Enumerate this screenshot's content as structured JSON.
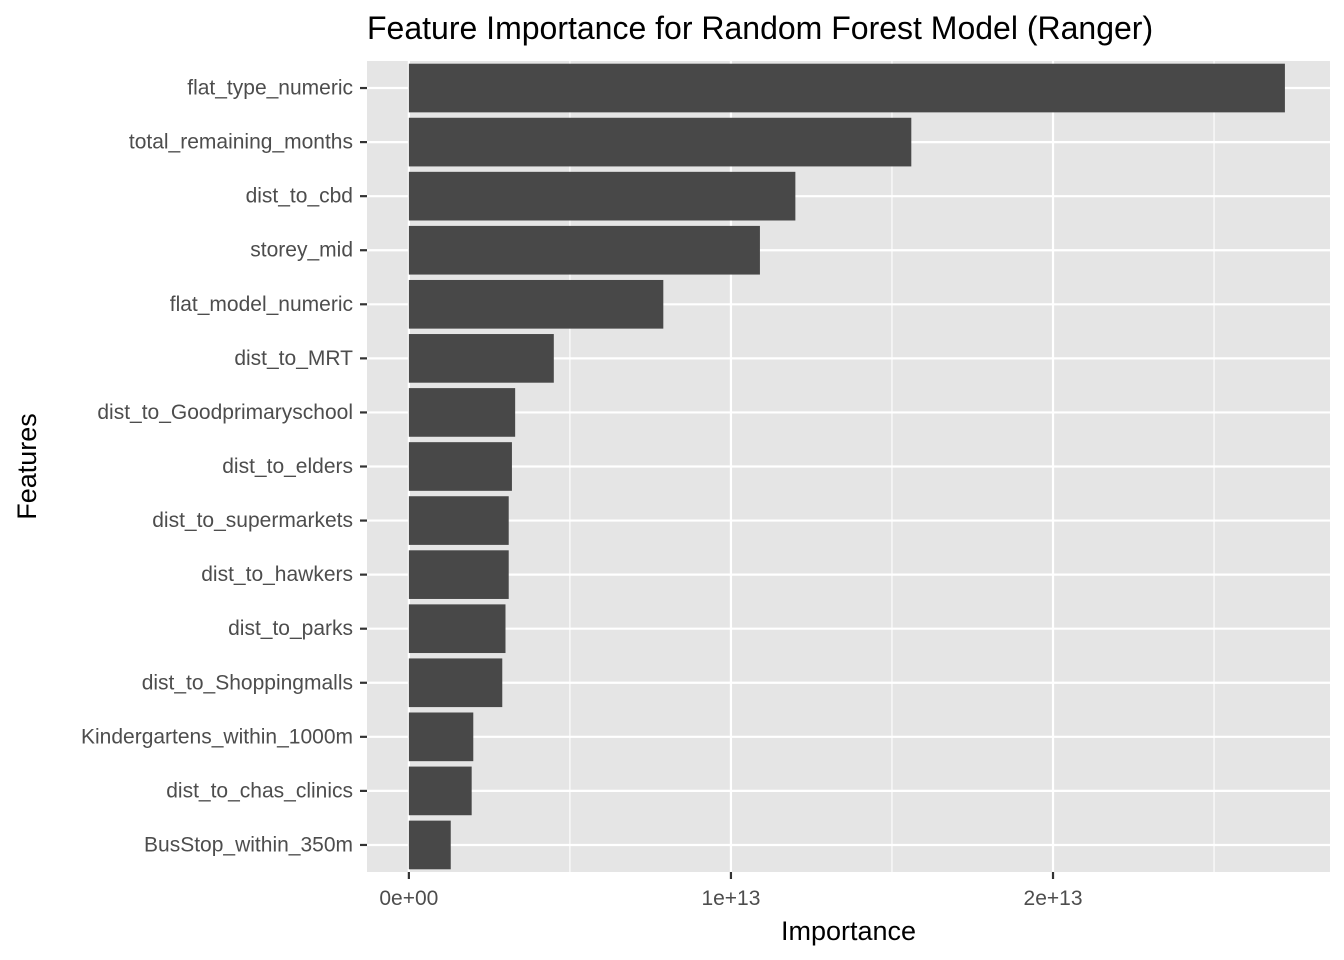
{
  "chart_data": {
    "type": "bar",
    "orientation": "horizontal",
    "title": "Feature Importance for Random Forest Model (Ranger)",
    "xlabel": "Importance",
    "ylabel": "Features",
    "categories": [
      "flat_type_numeric",
      "total_remaining_months",
      "dist_to_cbd",
      "storey_mid",
      "flat_model_numeric",
      "dist_to_MRT",
      "dist_to_Goodprimaryschool",
      "dist_to_elders",
      "dist_to_supermarkets",
      "dist_to_hawkers",
      "dist_to_parks",
      "dist_to_Shoppingmalls",
      "Kindergartens_within_1000m",
      "dist_to_chas_clinics",
      "BusStop_within_350m"
    ],
    "values": [
      27200000000000.0,
      15600000000000.0,
      12000000000000.0,
      10900000000000.0,
      7900000000000.0,
      4500000000000.0,
      3300000000000.0,
      3200000000000.0,
      3100000000000.0,
      3100000000000.0,
      3000000000000.0,
      2900000000000.0,
      2000000000000.0,
      1950000000000.0,
      1300000000000.0
    ],
    "xlim": [
      -1300000000000.0,
      28600000000000.0
    ],
    "xticks": [
      0,
      10000000000000.0,
      20000000000000.0
    ],
    "xtick_labels": [
      "0e+00",
      "1e+13",
      "2e+13"
    ],
    "grid": true,
    "legend": "none",
    "colors": {
      "bar": "#484848",
      "panel": "#e5e5e5",
      "grid": "#ffffff"
    }
  }
}
